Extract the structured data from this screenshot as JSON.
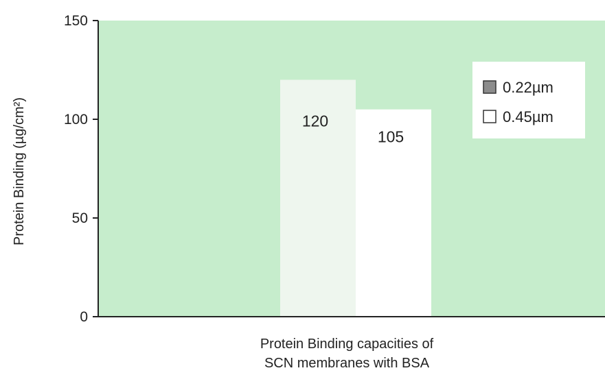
{
  "chart_data": {
    "type": "bar",
    "title": "",
    "xlabel": [
      "Protein Binding capacities of",
      "SCN membranes with BSA"
    ],
    "ylabel": "Protein Binding (µg/cm²)",
    "ylim": [
      0,
      150
    ],
    "yticks": [
      0,
      50,
      100,
      150
    ],
    "grid": false,
    "legend_position": "top-right",
    "categories": [
      ""
    ],
    "series": [
      {
        "name": "0.22µm",
        "values": [
          120
        ],
        "data_label": "120",
        "color": "#eef6ee",
        "legend_swatch_color": "#8c8c8c"
      },
      {
        "name": "0.45µm",
        "values": [
          105
        ],
        "data_label": "105",
        "color": "#ffffff",
        "legend_swatch_color": "#ffffff"
      }
    ]
  },
  "colors": {
    "plot_background": "#c6edcc",
    "axis": "#222222",
    "text": "#222222",
    "legend_background": "#ffffff"
  }
}
